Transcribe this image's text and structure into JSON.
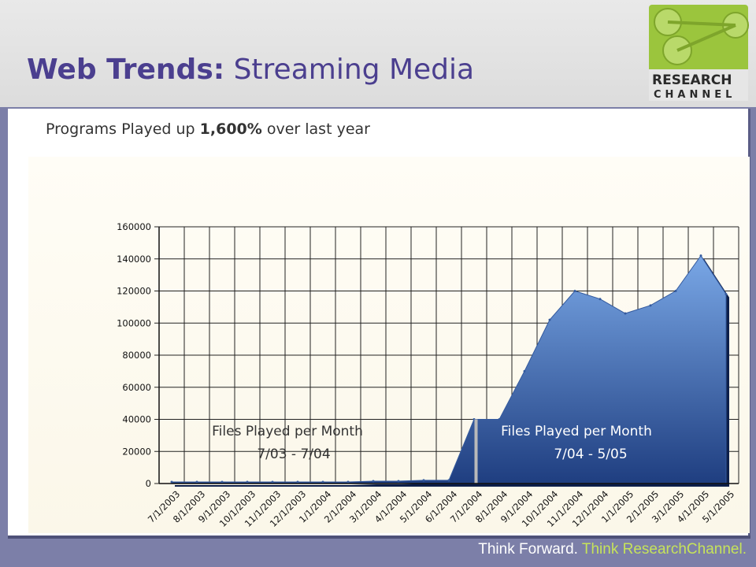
{
  "header": {
    "title_bold": "Web Trends:",
    "title_rest": " Streaming Media",
    "logo_line1": "RESEARCH",
    "logo_line2": "CHANNEL"
  },
  "subtitle": {
    "prefix": "Programs Played up ",
    "bold": "1,600%",
    "suffix": " over last year"
  },
  "colors": {
    "title": "#4b3f8f",
    "area_fill_top": "#79a7e6",
    "area_fill_bottom": "#1f3e80",
    "logo_green": "#9bc53d",
    "footer_green": "#c6e35a"
  },
  "chart_data": {
    "type": "area",
    "categories": [
      "7/1/2003",
      "8/1/2003",
      "9/1/2003",
      "10/1/2003",
      "11/1/2003",
      "12/1/2003",
      "1/1/2004",
      "2/1/2004",
      "3/1/2004",
      "4/1/2004",
      "5/1/2004",
      "6/1/2004",
      "7/1/2004",
      "8/1/2004",
      "9/1/2004",
      "10/1/2004",
      "11/1/2004",
      "12/1/2004",
      "1/1/2005",
      "2/1/2005",
      "3/1/2005",
      "4/1/2005",
      "5/1/2005"
    ],
    "values": [
      1000,
      1000,
      1000,
      1000,
      1000,
      1000,
      1000,
      1000,
      1500,
      1500,
      2000,
      2000,
      40000,
      40000,
      70000,
      102000,
      120000,
      115000,
      106000,
      111000,
      120000,
      142000,
      118000
    ],
    "ylim": [
      0,
      160000
    ],
    "yticks": [
      "0",
      "20000",
      "40000",
      "60000",
      "80000",
      "100000",
      "120000",
      "140000",
      "160000"
    ],
    "grid": true,
    "annotations": [
      {
        "line1": "Files Played per Month",
        "line2": "7/03 - 7/04"
      },
      {
        "line1": "Files Played per Month",
        "line2": "7/04 - 5/05"
      }
    ]
  },
  "footer": {
    "part1": "Think Forward. ",
    "part2": "Think ResearchChannel."
  }
}
